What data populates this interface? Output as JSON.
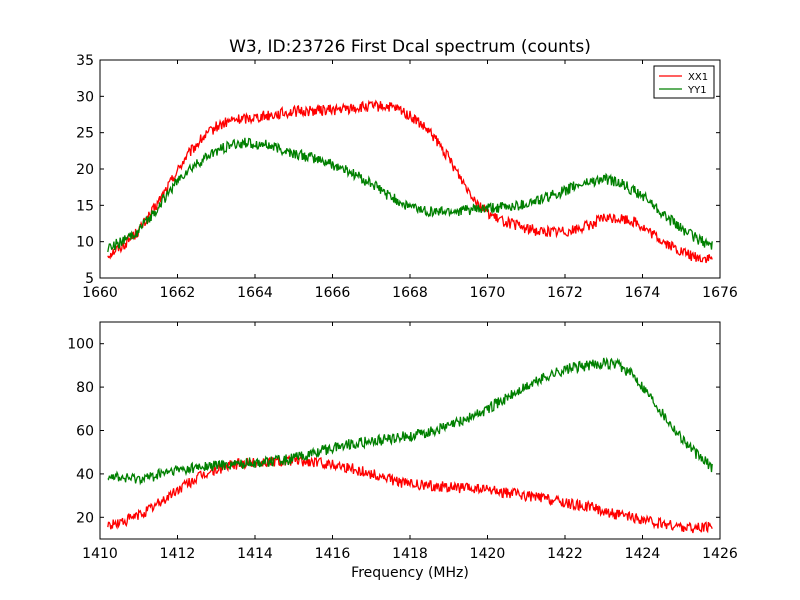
{
  "title": "W3, ID:23726 First Dcal spectrum (counts)",
  "xlabel": "Frequency (MHz)",
  "chart_data": [
    {
      "type": "line",
      "title": "W3, ID:23726 First Dcal spectrum (counts)",
      "xlabel": "",
      "ylabel": "",
      "xlim": [
        1660,
        1676
      ],
      "ylim": [
        5,
        35
      ],
      "xticks": [
        1660,
        1662,
        1664,
        1666,
        1668,
        1670,
        1672,
        1674,
        1676
      ],
      "yticks": [
        5,
        10,
        15,
        20,
        25,
        30,
        35
      ],
      "legend": "top-right",
      "series": [
        {
          "name": "XX1",
          "color": "#ff0000",
          "x": [
            1660.2,
            1660.6,
            1661.0,
            1661.4,
            1661.8,
            1662.2,
            1662.6,
            1663.0,
            1663.4,
            1663.8,
            1664.2,
            1664.6,
            1665.0,
            1665.4,
            1665.8,
            1666.2,
            1666.6,
            1667.0,
            1667.4,
            1667.8,
            1668.2,
            1668.6,
            1669.0,
            1669.4,
            1669.8,
            1670.2,
            1670.6,
            1671.0,
            1671.4,
            1671.8,
            1672.2,
            1672.6,
            1673.0,
            1673.4,
            1673.8,
            1674.2,
            1674.6,
            1675.0,
            1675.4,
            1675.8
          ],
          "y": [
            8.2,
            9.5,
            11.5,
            14.5,
            18.0,
            21.5,
            24.0,
            25.8,
            26.7,
            27.0,
            27.3,
            27.6,
            27.9,
            28.0,
            28.1,
            28.2,
            28.4,
            28.6,
            28.6,
            28.0,
            26.5,
            24.5,
            21.5,
            18.0,
            15.0,
            13.2,
            12.5,
            11.8,
            11.4,
            11.4,
            11.6,
            12.2,
            13.2,
            13.2,
            12.8,
            11.2,
            9.8,
            8.6,
            7.8,
            7.6
          ]
        },
        {
          "name": "YY1",
          "color": "#008000",
          "x": [
            1660.2,
            1660.6,
            1661.0,
            1661.4,
            1661.8,
            1662.2,
            1662.6,
            1663.0,
            1663.4,
            1663.8,
            1664.2,
            1664.6,
            1665.0,
            1665.4,
            1665.8,
            1666.2,
            1666.6,
            1667.0,
            1667.4,
            1667.8,
            1668.2,
            1668.6,
            1669.0,
            1669.4,
            1669.8,
            1670.2,
            1670.6,
            1671.0,
            1671.4,
            1671.8,
            1672.2,
            1672.6,
            1673.0,
            1673.4,
            1673.8,
            1674.2,
            1674.6,
            1675.0,
            1675.4,
            1675.8
          ],
          "y": [
            9.2,
            10.0,
            11.5,
            14.0,
            17.0,
            19.5,
            21.0,
            22.5,
            23.3,
            23.6,
            23.4,
            22.8,
            22.1,
            21.6,
            21.0,
            20.2,
            19.2,
            18.0,
            16.5,
            15.3,
            14.5,
            14.1,
            14.2,
            14.3,
            14.4,
            14.6,
            14.8,
            15.2,
            15.8,
            16.6,
            17.5,
            18.2,
            18.6,
            18.1,
            17.0,
            15.5,
            13.5,
            11.8,
            10.4,
            9.4
          ]
        }
      ]
    },
    {
      "type": "line",
      "title": "",
      "xlabel": "Frequency (MHz)",
      "ylabel": "",
      "xlim": [
        1410,
        1426
      ],
      "ylim": [
        10,
        110
      ],
      "xticks": [
        1410,
        1412,
        1414,
        1416,
        1418,
        1420,
        1422,
        1424,
        1426
      ],
      "yticks": [
        20,
        40,
        60,
        80,
        100
      ],
      "legend": "none",
      "series": [
        {
          "name": "XX1",
          "color": "#ff0000",
          "x": [
            1410.2,
            1410.6,
            1411.0,
            1411.4,
            1411.8,
            1412.2,
            1412.6,
            1413.0,
            1413.4,
            1413.8,
            1414.2,
            1414.6,
            1415.0,
            1415.4,
            1415.8,
            1416.2,
            1416.6,
            1417.0,
            1417.4,
            1417.8,
            1418.2,
            1418.6,
            1419.0,
            1419.4,
            1419.8,
            1420.2,
            1420.6,
            1421.0,
            1421.4,
            1421.8,
            1422.2,
            1422.6,
            1423.0,
            1423.4,
            1423.8,
            1424.2,
            1424.6,
            1425.0,
            1425.4,
            1425.8
          ],
          "y": [
            16,
            18,
            21,
            25,
            30,
            35,
            39,
            42,
            44,
            45,
            45.5,
            46,
            46,
            45.5,
            45,
            44,
            42,
            40,
            38,
            36,
            35,
            34.5,
            34,
            33.5,
            33,
            32,
            31,
            30,
            29,
            27.5,
            26,
            25,
            23,
            21,
            19.5,
            18,
            16.5,
            15.5,
            15,
            15.5
          ]
        },
        {
          "name": "YY1",
          "color": "#008000",
          "x": [
            1410.2,
            1410.6,
            1411.0,
            1411.4,
            1411.8,
            1412.2,
            1412.6,
            1413.0,
            1413.4,
            1413.8,
            1414.2,
            1414.6,
            1415.0,
            1415.4,
            1415.8,
            1416.2,
            1416.6,
            1417.0,
            1417.4,
            1417.8,
            1418.2,
            1418.6,
            1419.0,
            1419.4,
            1419.8,
            1420.2,
            1420.6,
            1421.0,
            1421.4,
            1421.8,
            1422.2,
            1422.6,
            1423.0,
            1423.4,
            1423.8,
            1424.2,
            1424.6,
            1425.0,
            1425.4,
            1425.8
          ],
          "y": [
            40,
            38,
            38,
            39,
            41,
            42,
            43,
            44,
            44.5,
            45,
            45.5,
            46,
            47,
            49,
            51,
            53,
            54,
            55,
            56,
            57,
            58,
            60,
            62,
            65,
            68,
            72,
            76,
            80,
            84,
            87,
            89,
            90,
            91,
            90,
            85,
            76,
            66,
            57,
            49,
            43
          ]
        }
      ]
    }
  ]
}
